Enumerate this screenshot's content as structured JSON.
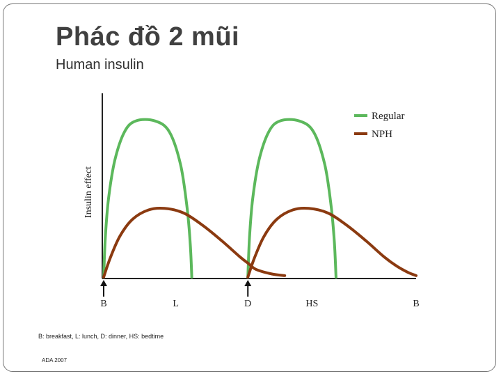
{
  "slide": {
    "title": "Phác đồ 2 mũi",
    "subtitle": "Human insulin",
    "footnote": "B: breakfast, L: lunch, D: dinner, HS: bedtime",
    "source": "ADA 2007"
  },
  "chart_data": {
    "type": "line",
    "ylabel": "Insulin effect",
    "xlabel": "",
    "x_ticks": [
      {
        "label": "B",
        "x": 0
      },
      {
        "label": "L",
        "x": 4.5
      },
      {
        "label": "D",
        "x": 9
      },
      {
        "label": "HS",
        "x": 13
      },
      {
        "label": "B",
        "x": 19.5
      }
    ],
    "injection_markers_at": [
      0,
      9
    ],
    "xlim": [
      0,
      19.5
    ],
    "ylim": [
      0,
      1.15
    ],
    "legend": {
      "position": "top-right"
    },
    "grid": false,
    "series": [
      {
        "name": "Regular",
        "color": "#5cb85c",
        "segments": [
          [
            [
              0,
              0
            ],
            [
              0.1,
              0.25
            ],
            [
              0.3,
              0.5
            ],
            [
              0.7,
              0.75
            ],
            [
              1.3,
              0.93
            ],
            [
              2.0,
              1.0
            ],
            [
              3.2,
              1.0
            ],
            [
              4.1,
              0.93
            ],
            [
              4.8,
              0.72
            ],
            [
              5.2,
              0.45
            ],
            [
              5.4,
              0.22
            ],
            [
              5.5,
              0
            ]
          ],
          [
            [
              9,
              0
            ],
            [
              9.1,
              0.25
            ],
            [
              9.3,
              0.5
            ],
            [
              9.7,
              0.75
            ],
            [
              10.3,
              0.93
            ],
            [
              11.0,
              1.0
            ],
            [
              12.2,
              1.0
            ],
            [
              13.1,
              0.93
            ],
            [
              13.8,
              0.72
            ],
            [
              14.2,
              0.45
            ],
            [
              14.4,
              0.22
            ],
            [
              14.5,
              0
            ]
          ]
        ]
      },
      {
        "name": "NPH",
        "color": "#8b3a10",
        "segments": [
          [
            [
              0,
              0
            ],
            [
              0.4,
              0.12
            ],
            [
              1.0,
              0.26
            ],
            [
              1.8,
              0.37
            ],
            [
              2.8,
              0.43
            ],
            [
              3.8,
              0.44
            ],
            [
              5.0,
              0.41
            ],
            [
              6.2,
              0.33
            ],
            [
              7.4,
              0.23
            ],
            [
              8.5,
              0.13
            ],
            [
              9.0,
              0.09
            ],
            [
              9.5,
              0.05
            ],
            [
              10.5,
              0.02
            ],
            [
              11.3,
              0.01
            ]
          ],
          [
            [
              9,
              0
            ],
            [
              9.4,
              0.12
            ],
            [
              10.0,
              0.26
            ],
            [
              10.8,
              0.37
            ],
            [
              11.8,
              0.43
            ],
            [
              12.8,
              0.44
            ],
            [
              14.0,
              0.41
            ],
            [
              15.2,
              0.33
            ],
            [
              16.4,
              0.23
            ],
            [
              17.5,
              0.13
            ],
            [
              18.3,
              0.07
            ],
            [
              19.0,
              0.03
            ],
            [
              19.5,
              0.01
            ]
          ]
        ]
      }
    ]
  }
}
